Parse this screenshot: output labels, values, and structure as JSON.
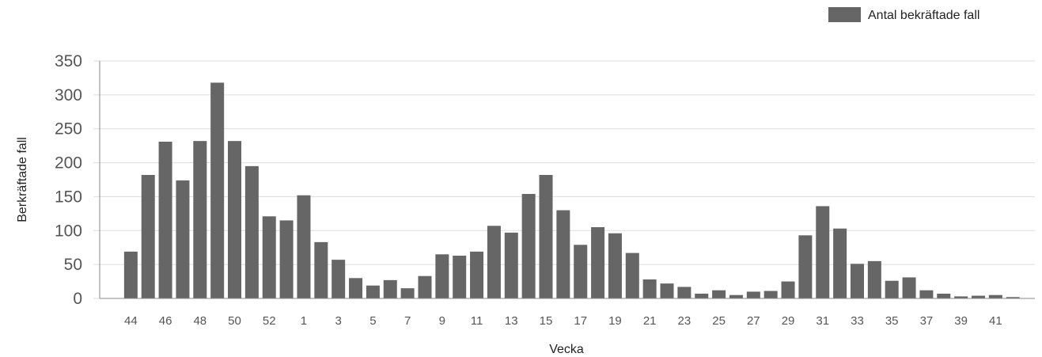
{
  "chart_data": {
    "type": "bar",
    "xlabel": "Vecka",
    "ylabel": "Berkräftade fall",
    "ylim": [
      0,
      350
    ],
    "yticks": [
      0,
      50,
      100,
      150,
      200,
      250,
      300,
      350
    ],
    "grid": true,
    "legend_position": "top-right",
    "categories": [
      "43",
      "44",
      "45",
      "46",
      "47",
      "48",
      "49",
      "50",
      "51",
      "52",
      "53",
      "1",
      "2",
      "3",
      "4",
      "5",
      "6",
      "7",
      "8",
      "9",
      "10",
      "11",
      "12",
      "13",
      "14",
      "15",
      "16",
      "17",
      "18",
      "19",
      "20",
      "21",
      "22",
      "23",
      "24",
      "25",
      "26",
      "27",
      "28",
      "29",
      "30",
      "31",
      "32",
      "33",
      "34",
      "35",
      "36",
      "37",
      "38",
      "39",
      "40",
      "41",
      "42"
    ],
    "x_tick_labels": [
      "44",
      "46",
      "48",
      "50",
      "52",
      "1",
      "3",
      "5",
      "7",
      "9",
      "11",
      "13",
      "15",
      "17",
      "19",
      "21",
      "23",
      "25",
      "27",
      "29",
      "31",
      "33",
      "35",
      "37",
      "39",
      "41"
    ],
    "series": [
      {
        "name": "Antal bekräftade fall",
        "color": "#666666",
        "values": [
          0,
          69,
          182,
          231,
          174,
          232,
          318,
          232,
          195,
          121,
          115,
          152,
          83,
          57,
          30,
          19,
          27,
          15,
          33,
          65,
          63,
          69,
          107,
          97,
          154,
          182,
          130,
          79,
          105,
          96,
          67,
          28,
          22,
          17,
          7,
          12,
          5,
          10,
          11,
          25,
          93,
          136,
          103,
          51,
          55,
          26,
          31,
          12,
          7,
          3,
          4,
          5,
          2
        ]
      }
    ]
  }
}
